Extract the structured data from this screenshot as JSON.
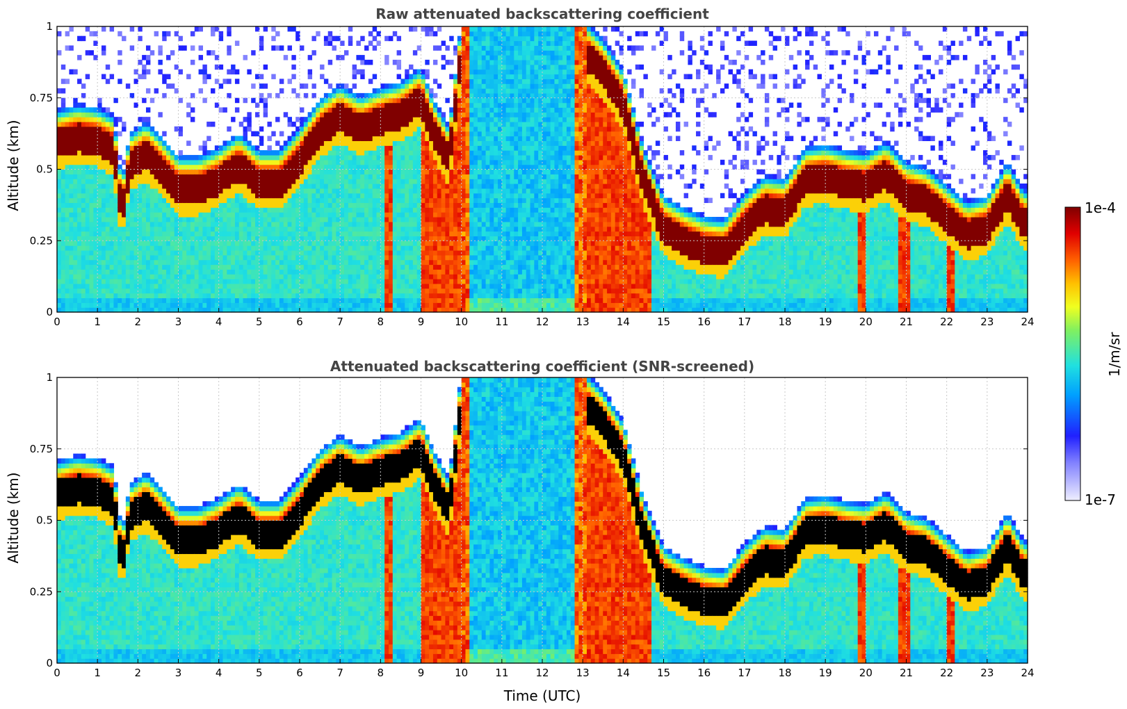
{
  "chart_data": [
    {
      "type": "heatmap",
      "title": "Raw attenuated backscattering coefficient",
      "xlabel": "",
      "ylabel": "Altitude (km)",
      "xlim": [
        0,
        24
      ],
      "ylim": [
        0,
        1
      ],
      "x_ticks": [
        0,
        1,
        2,
        3,
        4,
        5,
        6,
        7,
        8,
        9,
        10,
        11,
        12,
        13,
        14,
        15,
        16,
        17,
        18,
        19,
        20,
        21,
        22,
        23,
        24
      ],
      "y_ticks": [
        0,
        0.25,
        0.5,
        0.75,
        1
      ],
      "y_tick_labels": [
        "0",
        "0.25",
        "0.5",
        "0.75",
        "1"
      ],
      "grid": true,
      "screened": false,
      "layer_top_km": {
        "time_h": [
          0,
          0.5,
          1,
          1.4,
          1.6,
          1.8,
          2.2,
          2.5,
          3,
          3.5,
          4,
          4.5,
          5,
          5.5,
          6,
          6.5,
          7,
          7.5,
          8,
          8.5,
          9,
          9.3,
          9.7,
          10,
          11,
          12,
          13,
          13.5,
          14,
          14.5,
          15,
          15.5,
          16,
          16.5,
          17,
          17.5,
          18,
          18.5,
          19,
          19.5,
          20,
          20.5,
          21,
          21.5,
          22,
          22.5,
          23,
          23.5,
          23.9
        ],
        "altitude_km": [
          0.68,
          0.7,
          0.69,
          0.66,
          0.43,
          0.6,
          0.64,
          0.6,
          0.52,
          0.52,
          0.55,
          0.6,
          0.54,
          0.54,
          0.62,
          0.72,
          0.77,
          0.73,
          0.76,
          0.78,
          0.83,
          0.72,
          0.62,
          1.0,
          1.0,
          1.0,
          1.0,
          0.93,
          0.82,
          0.55,
          0.38,
          0.34,
          0.31,
          0.3,
          0.39,
          0.45,
          0.44,
          0.55,
          0.56,
          0.54,
          0.53,
          0.57,
          0.5,
          0.48,
          0.42,
          0.36,
          0.38,
          0.5,
          0.4
        ]
      }
    },
    {
      "type": "heatmap",
      "title": "Attenuated backscattering coefficient (SNR-screened)",
      "xlabel": "Time (UTC)",
      "ylabel": "Altitude (km)",
      "xlim": [
        0,
        24
      ],
      "ylim": [
        0,
        1
      ],
      "x_ticks": [
        0,
        1,
        2,
        3,
        4,
        5,
        6,
        7,
        8,
        9,
        10,
        11,
        12,
        13,
        14,
        15,
        16,
        17,
        18,
        19,
        20,
        21,
        22,
        23,
        24
      ],
      "y_ticks": [
        0,
        0.25,
        0.5,
        0.75,
        1
      ],
      "y_tick_labels": [
        "0",
        "0.25",
        "0.5",
        "0.75",
        "1"
      ],
      "grid": true,
      "screened": true,
      "layer_top_km": {
        "time_h": [
          0,
          0.5,
          1,
          1.4,
          1.6,
          1.8,
          2.2,
          2.5,
          3,
          3.5,
          4,
          4.5,
          5,
          5.5,
          6,
          6.5,
          7,
          7.5,
          8,
          8.5,
          9,
          9.3,
          9.7,
          10,
          11,
          12,
          13,
          13.5,
          14,
          14.5,
          15,
          15.5,
          16,
          16.5,
          17,
          17.5,
          18,
          18.5,
          19,
          19.5,
          20,
          20.5,
          21,
          21.5,
          22,
          22.5,
          23,
          23.5,
          23.9
        ],
        "altitude_km": [
          0.68,
          0.7,
          0.69,
          0.66,
          0.43,
          0.6,
          0.64,
          0.6,
          0.52,
          0.52,
          0.55,
          0.6,
          0.54,
          0.54,
          0.62,
          0.72,
          0.77,
          0.73,
          0.76,
          0.78,
          0.83,
          0.72,
          0.62,
          1.0,
          1.0,
          1.0,
          1.0,
          0.93,
          0.82,
          0.55,
          0.38,
          0.34,
          0.31,
          0.3,
          0.39,
          0.45,
          0.44,
          0.55,
          0.56,
          0.54,
          0.53,
          0.57,
          0.5,
          0.48,
          0.42,
          0.36,
          0.38,
          0.5,
          0.4
        ]
      }
    }
  ],
  "colorbar": {
    "label": "1/m/sr",
    "max_label": "1e-4",
    "min_label": "1e-7",
    "range": [
      1e-07,
      0.0001
    ],
    "scale": "log",
    "colormap": [
      "#eeeeff",
      "#3030ff",
      "#00c8ff",
      "#40e8b0",
      "#c0ff40",
      "#ffe000",
      "#ff6000",
      "#e00000",
      "#800000"
    ]
  },
  "colors": {
    "dark_core_raw": "#800000",
    "dark_core_screened": "#000000",
    "background": "#ffffff"
  }
}
